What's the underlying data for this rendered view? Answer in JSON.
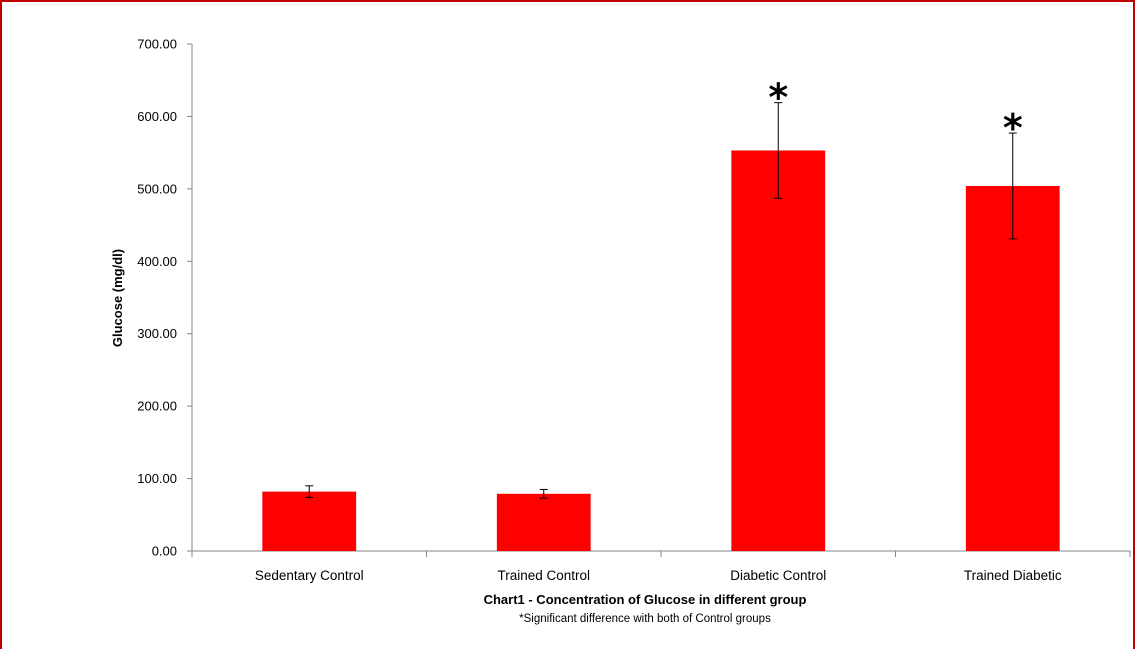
{
  "chart_data": {
    "type": "bar",
    "categories": [
      "Sedentary Control",
      "Trained Control",
      "Diabetic Control",
      "Trained Diabetic"
    ],
    "values": [
      82,
      79,
      553,
      504
    ],
    "error_bars": [
      8,
      6,
      66,
      73
    ],
    "significance_markers": [
      "",
      "",
      "*",
      "*"
    ],
    "title": "Chart1 - Concentration of Glucose in different group",
    "note": "*Significant difference with both of Control groups",
    "xlabel": "",
    "ylabel": "Glucose (mg/dl)",
    "ylim": [
      0,
      700
    ],
    "yticks": [
      "0.00",
      "100.00",
      "200.00",
      "300.00",
      "400.00",
      "500.00",
      "600.00",
      "700.00"
    ],
    "grid": false,
    "legend": "none",
    "bar_color": "#ff0000",
    "frame_color": "#c00000"
  }
}
